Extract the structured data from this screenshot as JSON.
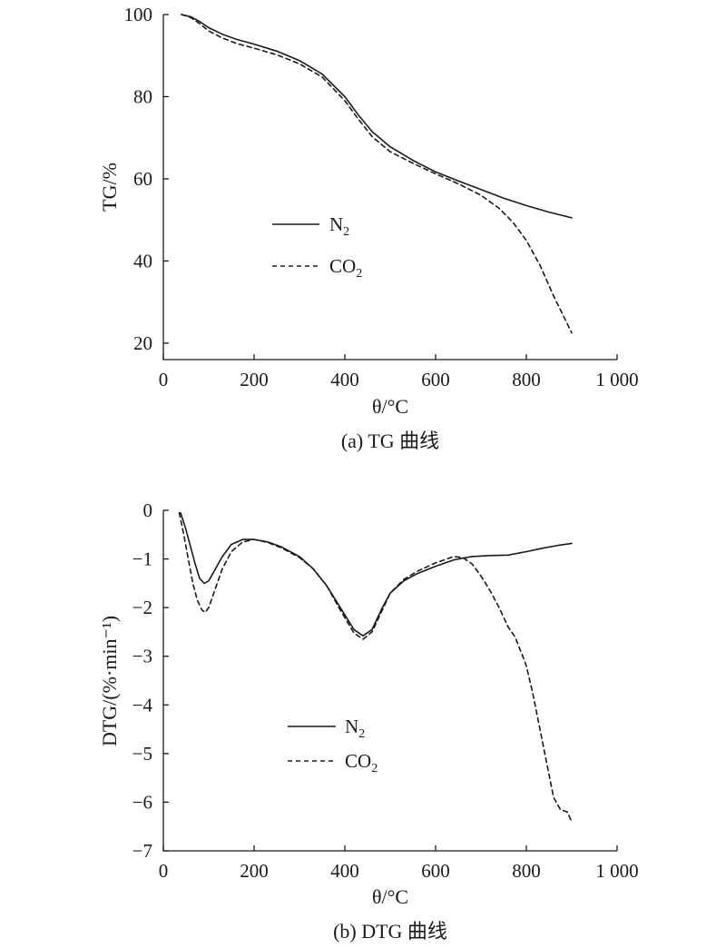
{
  "chart_data": [
    {
      "type": "line",
      "xlabel": "θ/°C",
      "ylabel": "TG/%",
      "caption": "(a) TG 曲线",
      "xlim": [
        0,
        1000
      ],
      "ylim": [
        16,
        100
      ],
      "xticks": [
        0,
        200,
        400,
        600,
        800,
        1000
      ],
      "xtick_labels": [
        "0",
        "200",
        "400",
        "600",
        "800",
        "1 000"
      ],
      "yticks": [
        20,
        40,
        60,
        80,
        100
      ],
      "ytick_labels": [
        "20",
        "40",
        "60",
        "80",
        "100"
      ],
      "grid": false,
      "legend_position": "center-left",
      "series": [
        {
          "name": "N2",
          "name_base": "N",
          "name_sub": "2",
          "line_style": "solid",
          "x": [
            40,
            60,
            80,
            100,
            130,
            160,
            200,
            250,
            300,
            350,
            400,
            430,
            460,
            500,
            550,
            600,
            650,
            700,
            750,
            800,
            850,
            900
          ],
          "y": [
            100,
            99.5,
            98.3,
            96.8,
            95.2,
            94.0,
            92.8,
            91.1,
            88.8,
            85.5,
            80.0,
            75.5,
            71.5,
            67.8,
            64.5,
            61.7,
            59.5,
            57.4,
            55.3,
            53.5,
            51.9,
            50.5
          ]
        },
        {
          "name": "CO2",
          "name_base": "CO",
          "name_sub": "2",
          "line_style": "dashed",
          "x": [
            40,
            60,
            80,
            100,
            130,
            160,
            200,
            250,
            300,
            350,
            400,
            430,
            460,
            500,
            550,
            600,
            650,
            700,
            740,
            770,
            800,
            830,
            860,
            880,
            900
          ],
          "y": [
            100,
            99.3,
            97.8,
            96.0,
            94.3,
            93.0,
            91.8,
            90.2,
            88.0,
            84.8,
            79.0,
            74.5,
            70.3,
            66.6,
            63.8,
            61.2,
            58.8,
            56.0,
            52.8,
            49.5,
            45.0,
            39.0,
            31.5,
            27.0,
            22.5
          ]
        }
      ]
    },
    {
      "type": "line",
      "xlabel": "θ/°C",
      "ylabel": "DTG/(%·min⁻¹)",
      "caption": "(b) DTG 曲线",
      "xlim": [
        0,
        1000
      ],
      "ylim": [
        -7,
        0
      ],
      "xticks": [
        0,
        200,
        400,
        600,
        800,
        1000
      ],
      "xtick_labels": [
        "0",
        "200",
        "400",
        "600",
        "800",
        "1 000"
      ],
      "yticks": [
        0,
        -1,
        -2,
        -3,
        -4,
        -5,
        -6,
        -7
      ],
      "ytick_labels": [
        "0",
        "−1",
        "−2",
        "−3",
        "−4",
        "−5",
        "−6",
        "−7"
      ],
      "grid": false,
      "legend_position": "center-left",
      "series": [
        {
          "name": "N2",
          "name_base": "N",
          "name_sub": "2",
          "line_style": "solid",
          "x": [
            38,
            50,
            60,
            70,
            80,
            90,
            100,
            115,
            130,
            150,
            175,
            200,
            230,
            260,
            300,
            330,
            360,
            390,
            420,
            440,
            460,
            480,
            500,
            530,
            560,
            600,
            640,
            680,
            720,
            760,
            800,
            840,
            870,
            900
          ],
          "y": [
            -0.05,
            -0.4,
            -0.75,
            -1.1,
            -1.4,
            -1.5,
            -1.45,
            -1.2,
            -0.95,
            -0.7,
            -0.6,
            -0.6,
            -0.65,
            -0.75,
            -0.95,
            -1.2,
            -1.55,
            -2.0,
            -2.45,
            -2.58,
            -2.45,
            -2.05,
            -1.7,
            -1.45,
            -1.3,
            -1.15,
            -1.02,
            -0.95,
            -0.93,
            -0.92,
            -0.85,
            -0.77,
            -0.72,
            -0.68
          ]
        },
        {
          "name": "CO2",
          "name_base": "CO",
          "name_sub": "2",
          "line_style": "dashed",
          "x": [
            35,
            45,
            55,
            65,
            75,
            85,
            92,
            100,
            115,
            130,
            150,
            175,
            200,
            230,
            260,
            300,
            330,
            360,
            390,
            420,
            440,
            460,
            480,
            500,
            530,
            560,
            600,
            640,
            660,
            680,
            700,
            720,
            740,
            760,
            775,
            790,
            800,
            815,
            830,
            845,
            860,
            875,
            890,
            900
          ],
          "y": [
            -0.05,
            -0.5,
            -1.0,
            -1.5,
            -1.85,
            -2.05,
            -2.1,
            -2.0,
            -1.6,
            -1.2,
            -0.85,
            -0.65,
            -0.6,
            -0.66,
            -0.77,
            -0.97,
            -1.2,
            -1.55,
            -2.05,
            -2.52,
            -2.65,
            -2.5,
            -2.1,
            -1.7,
            -1.42,
            -1.25,
            -1.08,
            -0.95,
            -0.97,
            -1.1,
            -1.35,
            -1.65,
            -2.0,
            -2.4,
            -2.6,
            -2.95,
            -3.2,
            -3.8,
            -4.5,
            -5.2,
            -5.9,
            -6.15,
            -6.2,
            -6.4
          ]
        }
      ]
    }
  ]
}
